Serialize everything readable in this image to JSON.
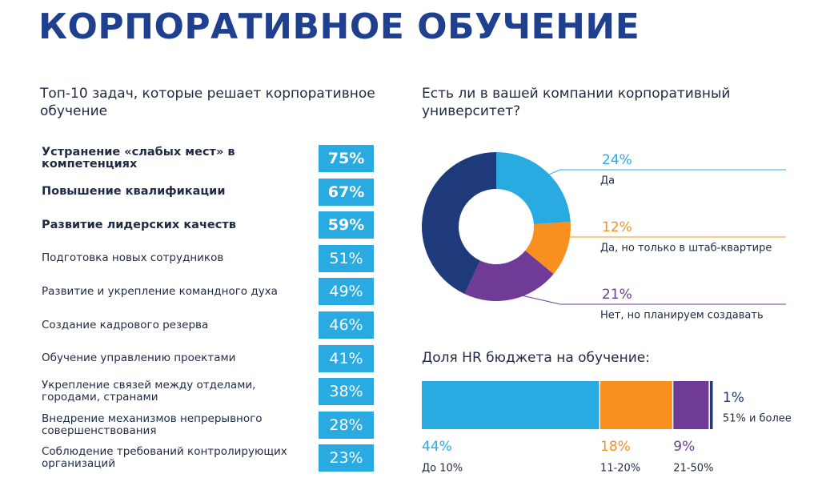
{
  "title": "КОРПОРАТИВНОЕ ОБУЧЕНИЕ",
  "chart_data": [
    {
      "type": "list-bar",
      "title": "Топ-10 задач, которые решает корпоративное обучение",
      "color": "#29abe2",
      "categories": [
        "Устранение «слабых мест» в компетенциях",
        "Повышение квалификации",
        "Развитие лидерских качеств",
        "Подготовка новых сотрудников",
        "Развитие и укрепление командного духа",
        "Создание кадрового резерва",
        "Обучение управлению проектами",
        "Укрепление связей между отделами, городами, странами",
        "Внедрение механизмов непрерывного совершенствования",
        "Соблюдение требований контролирующих организаций"
      ],
      "values": [
        75,
        67,
        59,
        51,
        49,
        46,
        41,
        38,
        28,
        23
      ],
      "value_labels": [
        "75%",
        "67%",
        "59%",
        "51%",
        "49%",
        "46%",
        "41%",
        "38%",
        "28%",
        "23%"
      ]
    },
    {
      "type": "donut",
      "title": "Есть ли в вашей компании корпоративный университет?",
      "categories": [
        "Да",
        "Да, но только в штаб-квартире",
        "Нет, но планируем создавать",
        null
      ],
      "values": [
        24,
        12,
        21,
        43
      ],
      "value_labels": [
        "24%",
        "12%",
        "21%",
        null
      ],
      "colors": [
        "#29abe2",
        "#f7901e",
        "#6f3b96",
        "#1f3a7a"
      ]
    },
    {
      "type": "stacked-bar",
      "title": "Доля HR бюджета на обучение:",
      "series": [
        {
          "name": "До 10%",
          "color": "#29abe2",
          "values": [
            44
          ],
          "value_labels": [
            "44%"
          ]
        },
        {
          "name": "11-20%",
          "color": "#f7901e",
          "values": [
            18
          ],
          "value_labels": [
            "18%"
          ]
        },
        {
          "name": "21-50%",
          "color": "#6f3b96",
          "values": [
            9
          ],
          "value_labels": [
            "9%"
          ]
        },
        {
          "name": "51% и более",
          "color": "#1f3a7a",
          "values": [
            1
          ],
          "value_labels": [
            "1%"
          ]
        }
      ]
    }
  ]
}
